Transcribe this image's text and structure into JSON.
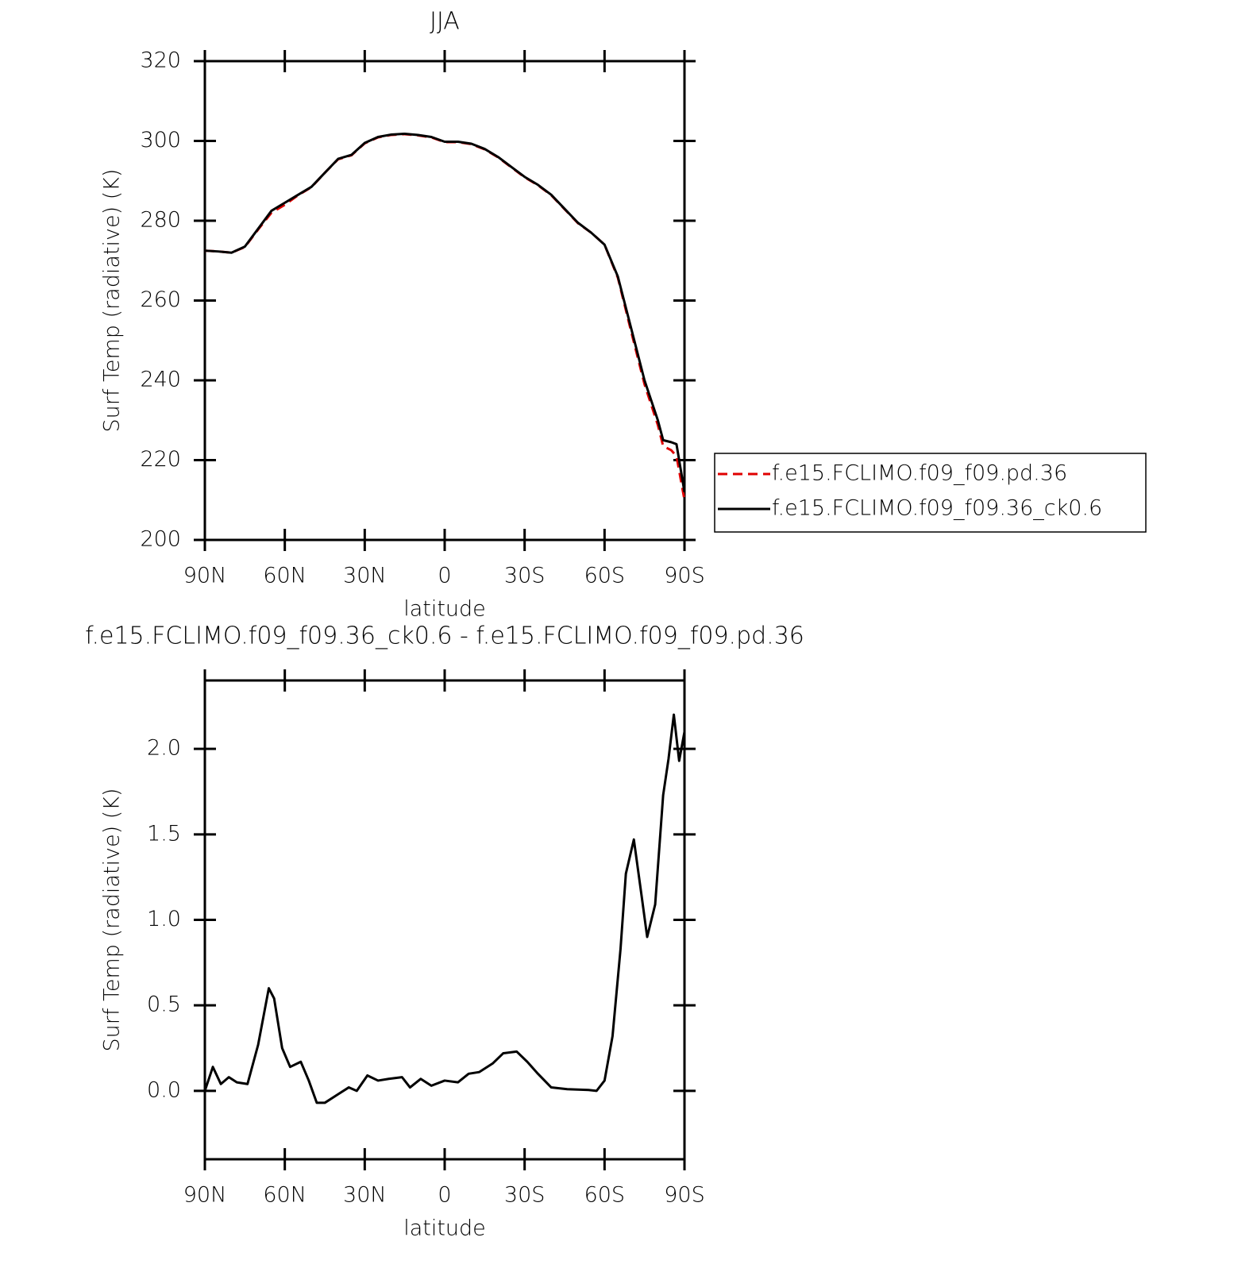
{
  "chart_data": [
    {
      "type": "line",
      "title": "JJA",
      "x_label": "latitude",
      "y_label": "Surf Temp (radiative) (K)",
      "x": [
        90,
        85,
        80,
        75,
        70,
        65,
        60,
        55,
        50,
        45,
        40,
        35,
        30,
        25,
        20,
        15,
        10,
        5,
        0,
        -5,
        -10,
        -15,
        -20,
        -25,
        -30,
        -35,
        -40,
        -45,
        -50,
        -55,
        -60,
        -65,
        -70,
        -75,
        -80,
        -82,
        -85,
        -87,
        -90
      ],
      "series": [
        {
          "name": "f.e15.FCLIMO.f09_f09.pd.36",
          "color": "#e00000",
          "line_style": "dashed",
          "values": [
            272.5,
            272.3,
            272,
            273.4,
            277.8,
            282,
            284,
            286.4,
            288.4,
            292,
            295.4,
            296.4,
            299.4,
            300.9,
            301.5,
            301.7,
            301.4,
            300.9,
            299.7,
            299.7,
            299.2,
            297.9,
            295.9,
            293.4,
            290.9,
            288.9,
            286.4,
            282.9,
            279.4,
            277,
            274,
            265.7,
            252.2,
            239,
            228.8,
            223.5,
            222.5,
            221,
            210
          ]
        },
        {
          "name": "f.e15.FCLIMO.f09_f09.36_ck0.6",
          "color": "#000000",
          "line_style": "solid",
          "values": [
            272.5,
            272.3,
            272,
            273.5,
            278,
            282.5,
            284.5,
            286.5,
            288.5,
            292,
            295.5,
            296.5,
            299.5,
            301,
            301.6,
            301.8,
            301.5,
            301,
            299.8,
            299.8,
            299.3,
            298,
            296,
            293.5,
            291,
            289,
            286.5,
            283,
            279.5,
            277,
            274,
            266,
            253,
            240,
            230,
            225,
            224.5,
            224,
            212
          ]
        }
      ],
      "xlim": [
        90,
        -90
      ],
      "xticks": [
        {
          "value": 90,
          "label": "90N"
        },
        {
          "value": 60,
          "label": "60N"
        },
        {
          "value": 30,
          "label": "30N"
        },
        0,
        {
          "value": -30,
          "label": "30S"
        },
        {
          "value": -60,
          "label": "60S"
        },
        {
          "value": -90,
          "label": "90S"
        }
      ],
      "ylim": [
        200,
        320
      ],
      "yticks": [
        200,
        220,
        240,
        260,
        280,
        300,
        320
      ],
      "legend": "outside-right"
    },
    {
      "type": "line",
      "title": "f.e15.FCLIMO.f09_f09.36_ck0.6 - f.e15.FCLIMO.f09_f09.pd.36",
      "x_label": "latitude",
      "y_label": "Surf Temp (radiative) (K)",
      "color": "#000000",
      "x": [
        90,
        87,
        84,
        81,
        78,
        74,
        70,
        66,
        64,
        61,
        58,
        54,
        51,
        48,
        45,
        40,
        36,
        33,
        29,
        25,
        21,
        16,
        13,
        9,
        5,
        0,
        -5,
        -9,
        -13,
        -18,
        -22,
        -27,
        -31,
        -35,
        -40,
        -46,
        -54,
        -57,
        -60,
        -63,
        -66,
        -68,
        -71,
        -74,
        -76,
        -79,
        -82,
        -84,
        -86,
        -88,
        -90
      ],
      "values": [
        0,
        0.14,
        0.04,
        0.08,
        0.05,
        0.04,
        0.27,
        0.6,
        0.54,
        0.25,
        0.14,
        0.17,
        0.06,
        -0.07,
        -0.07,
        -0.02,
        0.02,
        0,
        0.09,
        0.06,
        0.07,
        0.08,
        0.02,
        0.07,
        0.03,
        0.06,
        0.05,
        0.1,
        0.11,
        0.16,
        0.22,
        0.23,
        0.17,
        0.1,
        0.02,
        0.01,
        0.005,
        0,
        0.06,
        0.32,
        0.83,
        1.27,
        1.47,
        1.13,
        0.9,
        1.09,
        1.73,
        1.94,
        2.2,
        1.93,
        2.1
      ],
      "xlim": [
        90,
        -90
      ],
      "xticks": [
        {
          "value": 90,
          "label": "90N"
        },
        {
          "value": 60,
          "label": "60N"
        },
        {
          "value": 30,
          "label": "30N"
        },
        0,
        {
          "value": -30,
          "label": "30S"
        },
        {
          "value": -60,
          "label": "60S"
        },
        {
          "value": -90,
          "label": "90S"
        }
      ],
      "ylim": [
        -0.4,
        2.4
      ],
      "yticks": [
        {
          "value": 0,
          "label": "0.0"
        },
        0.5,
        {
          "value": 1,
          "label": "1.0"
        },
        1.5,
        {
          "value": 2,
          "label": "2.0"
        }
      ]
    }
  ]
}
